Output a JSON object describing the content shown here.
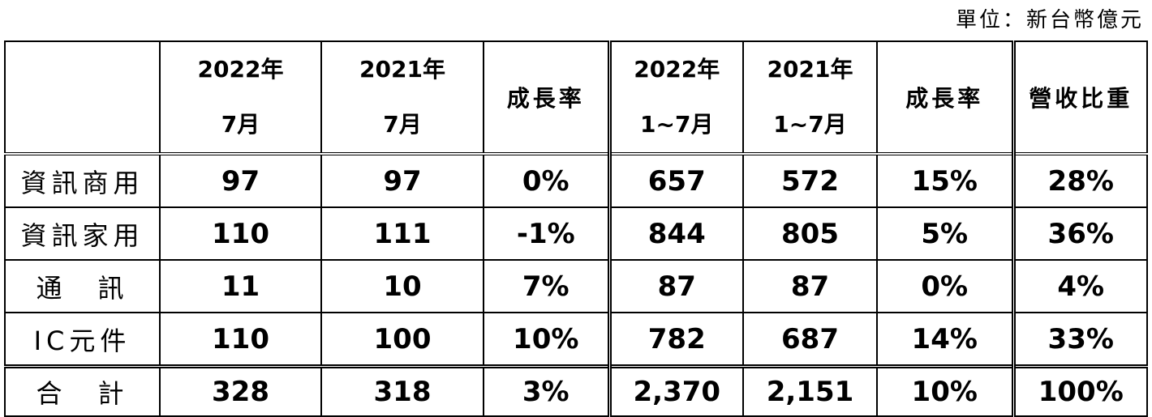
{
  "unit": "單位：新台幣億元",
  "table": {
    "header": [
      [
        "2022年",
        "7月"
      ],
      [
        "2021年",
        "7月"
      ],
      [
        "成長率"
      ],
      [
        "2022年",
        "1~7月"
      ],
      [
        "2021年",
        "1~7月"
      ],
      [
        "成長率"
      ],
      [
        "營收比重"
      ]
    ],
    "rows": [
      [
        "資訊商用",
        "97",
        "97",
        "0%",
        "657",
        "572",
        "15%",
        "28%"
      ],
      [
        "資訊家用",
        "110",
        "111",
        "-1%",
        "844",
        "805",
        "5%",
        "36%"
      ],
      [
        "通　訊",
        "11",
        "10",
        "7%",
        "87",
        "87",
        "0%",
        "4%"
      ],
      [
        "IC元件",
        "110",
        "100",
        "10%",
        "782",
        "687",
        "14%",
        "33%"
      ],
      [
        "合　計",
        "328",
        "318",
        "3%",
        "2,370",
        "2,151",
        "10%",
        "100%"
      ]
    ]
  }
}
